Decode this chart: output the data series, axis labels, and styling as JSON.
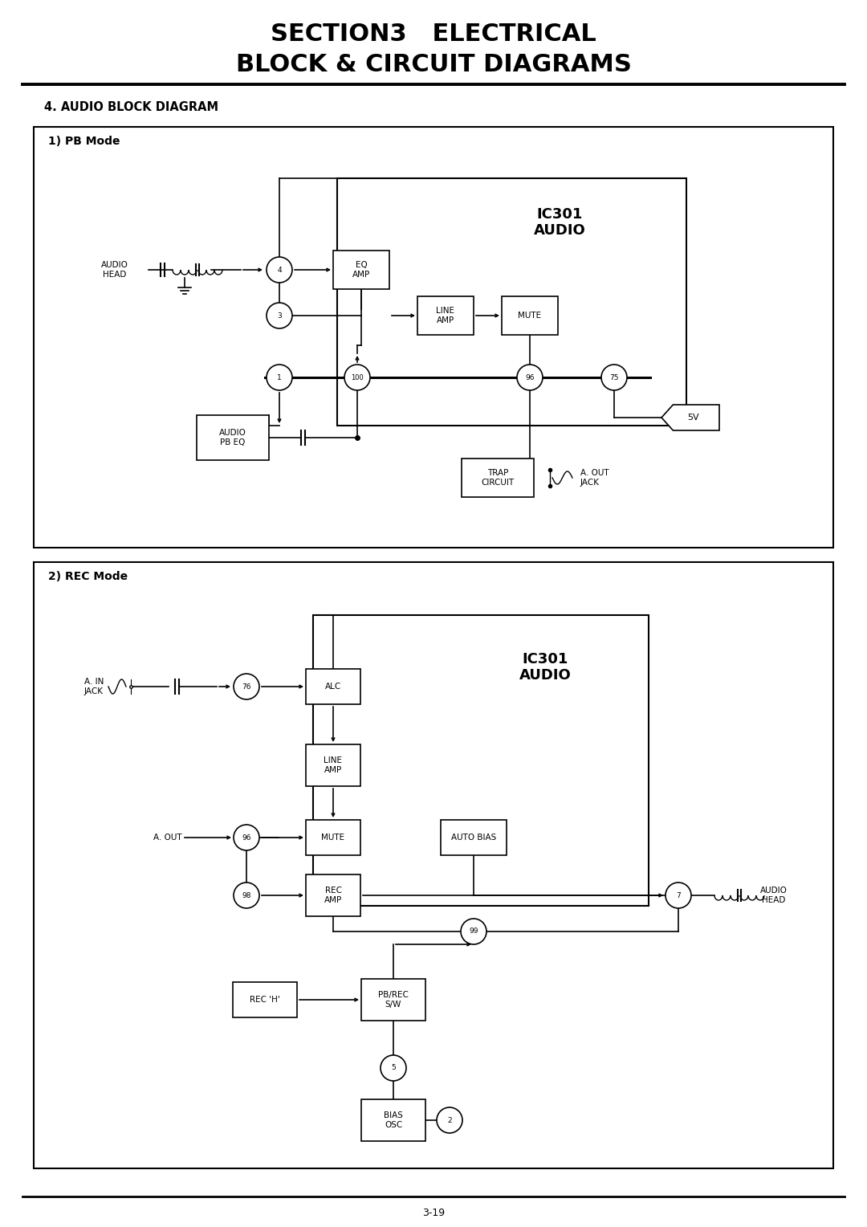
{
  "title_line1": "SECTION3   ELECTRICAL",
  "title_line2": "BLOCK & CIRCUIT DIAGRAMS",
  "subtitle": "4. AUDIO BLOCK DIAGRAM",
  "pb_mode_label": "1) PB Mode",
  "rec_mode_label": "2) REC Mode",
  "page_number": "3-19",
  "bg_color": "#ffffff"
}
